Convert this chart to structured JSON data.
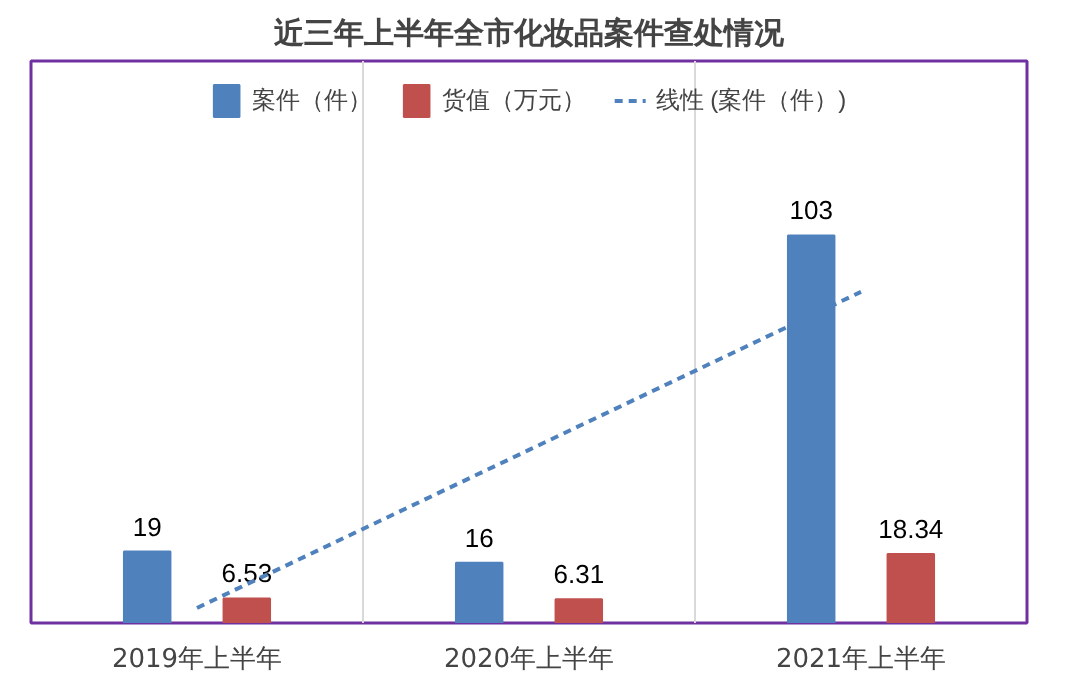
{
  "chart_data": {
    "type": "bar",
    "title": "近三年上半年全市化妆品案件查处情况",
    "categories": [
      "2019年上半年",
      "2020年上半年",
      "2021年上半年"
    ],
    "series": [
      {
        "name": "案件（件）",
        "color": "#4f81bd",
        "values": [
          19,
          16,
          103
        ],
        "value_labels": [
          "19",
          "16",
          "103"
        ]
      },
      {
        "name": "货值（万元）",
        "color": "#c0504d",
        "values": [
          6.53,
          6.31,
          18.34
        ],
        "value_labels": [
          "6.53",
          "6.31",
          "18.34"
        ]
      },
      {
        "name": "线性 (案件（件）)",
        "type": "line",
        "color": "#4f81bd",
        "line_style": "dashed",
        "values": [
          4,
          46,
          88
        ]
      }
    ],
    "legend": "top",
    "grid": "x"
  }
}
